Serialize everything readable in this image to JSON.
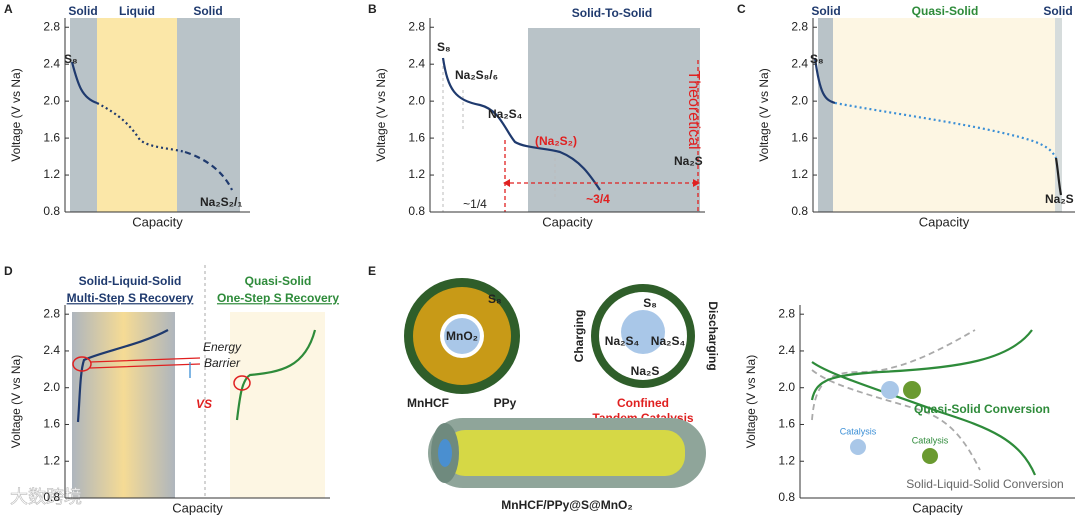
{
  "panels": [
    {
      "letter": "A",
      "regions": [
        "Solid",
        "Liquid",
        "Solid"
      ],
      "labels": [
        "S₈",
        "Na₂S₂/₁"
      ],
      "ylabel": "Voltage (V vs Na)",
      "xlabel": "Capacity",
      "ylim": [
        0.8,
        2.9
      ],
      "yticks": [
        0.8,
        1.2,
        1.6,
        {
          "value": 2,
          "label": "2.0"
        },
        2.4,
        2.8
      ]
    },
    {
      "letter": "B",
      "title": "Solid-To-Solid",
      "labels": [
        "S₈",
        "Na₂S₈/₆",
        "Na₂S₄",
        "(Na₂S₂)",
        "Na₂S",
        "Theoretical",
        "~1/4",
        "~3/4"
      ],
      "ylabel": "Voltage (V vs Na)",
      "xlabel": "Capacity",
      "ylim": [
        0.8,
        2.9
      ],
      "yticks": [
        0.8,
        1.2,
        1.6,
        {
          "value": 2,
          "label": "2.0"
        },
        2.4,
        2.8
      ]
    },
    {
      "letter": "C",
      "regions": [
        "Solid",
        "Quasi-Solid",
        "Solid"
      ],
      "labels": [
        "S₈",
        "Na₂S"
      ],
      "ylabel": "Voltage (V vs Na)",
      "xlabel": "Capacity",
      "ylim": [
        0.8,
        2.9
      ],
      "yticks": [
        0.8,
        1.2,
        1.6,
        {
          "value": 2,
          "label": "2.0"
        },
        2.4,
        2.8
      ]
    },
    {
      "letter": "D",
      "headers": [
        "Solid-Liquid-Solid",
        "Multi-Step S Recovery",
        "Quasi-Solid",
        "One-Step S Recovery"
      ],
      "labels": [
        "Energy",
        "Barrier",
        "VS"
      ],
      "ylabel": "Voltage (V vs Na)",
      "xlabel": "Capacity",
      "ylim": [
        0.8,
        2.9
      ],
      "yticks": [
        0.8,
        1.2,
        1.6,
        {
          "value": 2,
          "label": "2.0"
        },
        2.4,
        2.8
      ]
    },
    {
      "labels": [
        "Quasi-Solid Conversion",
        "Catalysis",
        "Catalysis",
        "Solid-Liquid-Solid Conversion"
      ],
      "ylabel": "Voltage (V vs Na)",
      "xlabel": "Capacity",
      "ylim": [
        0.8,
        2.9
      ],
      "yticks": [
        0.8,
        1.2,
        1.6,
        {
          "value": 2,
          "label": "2.0"
        },
        2.4,
        2.8
      ]
    }
  ],
  "diagram": {
    "letter": "E",
    "labels": [
      "S₈",
      "MnO₂",
      "MnHCF",
      "PPy",
      "Charging",
      "Discharging",
      "S₈",
      "Na₂S₄",
      "Na₂S₄",
      "Na₂S",
      "Confined",
      "Tandem Catalysis",
      "MnHCF/PPy@S@MnO₂"
    ]
  },
  "watermark": "大数跨境"
}
